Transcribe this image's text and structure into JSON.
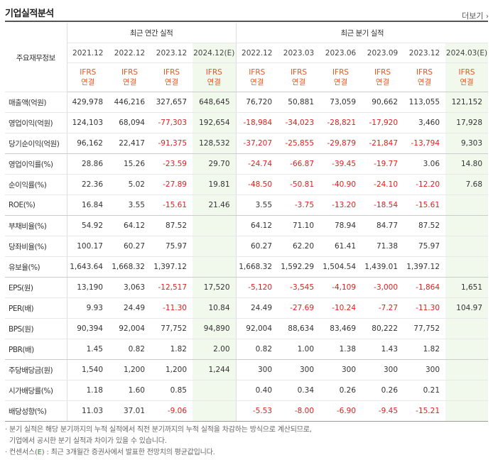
{
  "header": {
    "title": "기업실적분석",
    "more_label": "더보기",
    "more_icon": "chevron-right"
  },
  "table": {
    "corner_label": "주요재무정보",
    "group_annual": "최근 연간 실적",
    "group_quarter": "최근 분기 실적",
    "columns": [
      {
        "period": "2021.12",
        "std": "IFRS",
        "basis": "연결",
        "estimate": false
      },
      {
        "period": "2022.12",
        "std": "IFRS",
        "basis": "연결",
        "estimate": false
      },
      {
        "period": "2023.12",
        "std": "IFRS",
        "basis": "연결",
        "estimate": false
      },
      {
        "period": "2024.12(E)",
        "std": "IFRS",
        "basis": "연결",
        "estimate": true
      },
      {
        "period": "2022.12",
        "std": "IFRS",
        "basis": "연결",
        "estimate": false
      },
      {
        "period": "2023.03",
        "std": "IFRS",
        "basis": "연결",
        "estimate": false
      },
      {
        "period": "2023.06",
        "std": "IFRS",
        "basis": "연결",
        "estimate": false
      },
      {
        "period": "2023.09",
        "std": "IFRS",
        "basis": "연결",
        "estimate": false
      },
      {
        "period": "2023.12",
        "std": "IFRS",
        "basis": "연결",
        "estimate": false
      },
      {
        "period": "2024.03(E)",
        "std": "IFRS",
        "basis": "연결",
        "estimate": true
      }
    ],
    "rows": [
      {
        "label": "매출액(억원)",
        "values": [
          "429,978",
          "446,216",
          "327,657",
          "648,645",
          "76,720",
          "50,881",
          "73,059",
          "90,662",
          "113,055",
          "121,152"
        ]
      },
      {
        "label": "영업이익(억원)",
        "values": [
          "124,103",
          "68,094",
          "-77,303",
          "192,654",
          "-18,984",
          "-34,023",
          "-28,821",
          "-17,920",
          "3,460",
          "17,928"
        ]
      },
      {
        "label": "당기순이익(억원)",
        "values": [
          "96,162",
          "22,417",
          "-91,375",
          "128,532",
          "-37,207",
          "-25,855",
          "-29,879",
          "-21,847",
          "-13,794",
          "9,303"
        ]
      },
      {
        "label": "영업이익률(%)",
        "values": [
          "28.86",
          "15.26",
          "-23.59",
          "29.70",
          "-24.74",
          "-66.87",
          "-39.45",
          "-19.77",
          "3.06",
          "14.80"
        ]
      },
      {
        "label": "순이익률(%)",
        "values": [
          "22.36",
          "5.02",
          "-27.89",
          "19.81",
          "-48.50",
          "-50.81",
          "-40.90",
          "-24.10",
          "-12.20",
          "7.68"
        ]
      },
      {
        "label": "ROE(%)",
        "values": [
          "16.84",
          "3.55",
          "-15.61",
          "21.46",
          "3.55",
          "-3.75",
          "-13.20",
          "-18.54",
          "-15.61",
          ""
        ]
      },
      {
        "label": "부채비율(%)",
        "values": [
          "54.92",
          "64.12",
          "87.52",
          "",
          "64.12",
          "71.10",
          "78.94",
          "84.77",
          "87.52",
          ""
        ]
      },
      {
        "label": "당좌비율(%)",
        "values": [
          "100.17",
          "60.27",
          "75.97",
          "",
          "60.27",
          "62.20",
          "61.41",
          "71.38",
          "75.97",
          ""
        ]
      },
      {
        "label": "유보율(%)",
        "values": [
          "1,643.64",
          "1,668.32",
          "1,397.12",
          "",
          "1,668.32",
          "1,592.29",
          "1,504.54",
          "1,439.01",
          "1,397.12",
          ""
        ]
      },
      {
        "label": "EPS(원)",
        "values": [
          "13,190",
          "3,063",
          "-12,517",
          "17,520",
          "-5,120",
          "-3,545",
          "-4,109",
          "-3,000",
          "-1,864",
          "1,651"
        ]
      },
      {
        "label": "PER(배)",
        "values": [
          "9.93",
          "24.49",
          "-11.30",
          "10.84",
          "24.49",
          "-27.69",
          "-10.24",
          "-7.27",
          "-11.30",
          "104.97"
        ]
      },
      {
        "label": "BPS(원)",
        "values": [
          "90,394",
          "92,004",
          "77,752",
          "94,890",
          "92,004",
          "88,634",
          "83,469",
          "80,222",
          "77,752",
          ""
        ]
      },
      {
        "label": "PBR(배)",
        "values": [
          "1.45",
          "0.82",
          "1.82",
          "2.00",
          "0.82",
          "1.00",
          "1.38",
          "1.43",
          "1.82",
          ""
        ]
      },
      {
        "label": "주당배당금(원)",
        "values": [
          "1,540",
          "1,200",
          "1,200",
          "1,244",
          "300",
          "300",
          "300",
          "300",
          "300",
          ""
        ]
      },
      {
        "label": "시가배당률(%)",
        "values": [
          "1.18",
          "1.60",
          "0.85",
          "",
          "0.40",
          "0.34",
          "0.26",
          "0.26",
          "0.21",
          ""
        ]
      },
      {
        "label": "배당성향(%)",
        "values": [
          "11.03",
          "37.01",
          "-9.06",
          "",
          "-5.53",
          "-8.00",
          "-6.90",
          "-9.45",
          "-15.21",
          ""
        ]
      }
    ]
  },
  "notes": {
    "line1": "· 분기 실적은 해당 분기까지의 누적 실적에서 직전 분기까지의 누적 실적을 차감하는 방식으로 계산되므로,",
    "line2": "  기업에서 공시한 분기 실적과 차이가 있을 수 있습니다.",
    "line3_prefix": "· 컨센서스(",
    "line3_e": "E",
    "line3_suffix": ") : 최근 3개월간 증권사에서 발표한 전망치의 평균값입니다."
  },
  "colors": {
    "negative": "#e02020",
    "ifrs": "#e8561e",
    "estimate_bg": "#f1f8ec"
  }
}
